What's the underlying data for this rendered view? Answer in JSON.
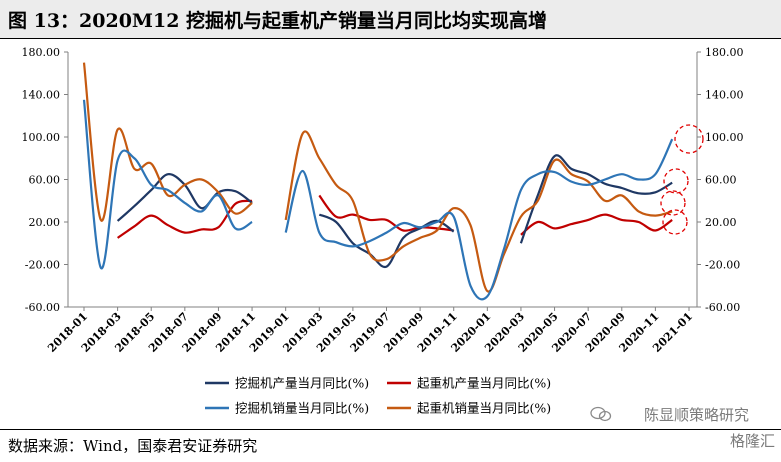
{
  "header": {
    "title": "图 13：2020M12 挖掘机与起重机产销量当月同比均实现高增"
  },
  "footer": {
    "source": "数据来源：Wind，国泰君安证券研究",
    "watermark_line1": "陈显顺策略研究",
    "watermark_line2": "格隆汇"
  },
  "chart_data": {
    "type": "line",
    "x": [
      "2018-01",
      "2018-02",
      "2018-03",
      "2018-04",
      "2018-05",
      "2018-06",
      "2018-07",
      "2018-08",
      "2018-09",
      "2018-10",
      "2018-11",
      "2018-12",
      "2019-01",
      "2019-02",
      "2019-03",
      "2019-04",
      "2019-05",
      "2019-06",
      "2019-07",
      "2019-08",
      "2019-09",
      "2019-10",
      "2019-11",
      "2019-12",
      "2020-01",
      "2020-02",
      "2020-03",
      "2020-04",
      "2020-05",
      "2020-06",
      "2020-07",
      "2020-08",
      "2020-09",
      "2020-10",
      "2020-11",
      "2020-12",
      "2021-01"
    ],
    "x_tick_labels": [
      "2018-01",
      "2018-03",
      "2018-05",
      "2018-07",
      "2018-09",
      "2018-11",
      "2019-01",
      "2019-03",
      "2019-05",
      "2019-07",
      "2019-09",
      "2019-11",
      "2020-01",
      "2020-03",
      "2020-05",
      "2020-07",
      "2020-09",
      "2020-11",
      "2021-01"
    ],
    "y_ticks": [
      180,
      140,
      100,
      60,
      20,
      -20,
      -60
    ],
    "y_tick_labels_left": [
      "180.00",
      "140.00",
      "100.00",
      "60.00",
      "20.00",
      "-20.00",
      "-60.00"
    ],
    "y_tick_labels_right": [
      "180.00",
      "140.00",
      "100.00",
      "60.00",
      "20.00",
      "-20.00",
      "-60.00"
    ],
    "ylim": [
      -60,
      180
    ],
    "grid": false,
    "legend_position": "bottom",
    "series": [
      {
        "name": "挖掘机产量当月同比(%)",
        "color": "#1f3864",
        "marker": "line",
        "values": [
          null,
          null,
          21,
          35,
          50,
          65,
          55,
          33,
          48,
          49,
          38,
          null,
          null,
          null,
          27,
          20,
          0,
          -10,
          -22,
          5,
          14,
          21,
          11,
          null,
          null,
          null,
          0,
          45,
          82,
          70,
          65,
          56,
          52,
          47,
          48,
          57,
          null
        ]
      },
      {
        "name": "起重机产量当月同比(%)",
        "color": "#c00000",
        "marker": "line",
        "values": [
          null,
          null,
          5,
          16,
          26,
          17,
          10,
          13,
          15,
          37,
          40,
          null,
          null,
          null,
          45,
          25,
          27,
          22,
          22,
          12,
          15,
          14,
          12,
          null,
          null,
          null,
          8,
          20,
          14,
          18,
          22,
          27,
          22,
          20,
          12,
          22,
          null
        ]
      },
      {
        "name": "挖掘机销量当月同比(%)",
        "color": "#2e75b6",
        "marker": "line",
        "values": [
          135,
          -23,
          78,
          80,
          55,
          50,
          38,
          30,
          45,
          14,
          20,
          null,
          10,
          68,
          10,
          1,
          -3,
          2,
          10,
          19,
          15,
          20,
          25,
          -40,
          -50,
          -5,
          50,
          65,
          67,
          58,
          55,
          60,
          65,
          60,
          65,
          98,
          null
        ]
      },
      {
        "name": "起重机销量当月同比(%)",
        "color": "#c55a11",
        "marker": "line",
        "values": [
          170,
          22,
          107,
          70,
          75,
          45,
          55,
          60,
          48,
          28,
          38,
          null,
          22,
          103,
          80,
          55,
          40,
          -10,
          -15,
          -3,
          5,
          12,
          33,
          17,
          -45,
          -10,
          25,
          40,
          78,
          65,
          58,
          40,
          45,
          30,
          26,
          30,
          null
        ]
      }
    ]
  }
}
